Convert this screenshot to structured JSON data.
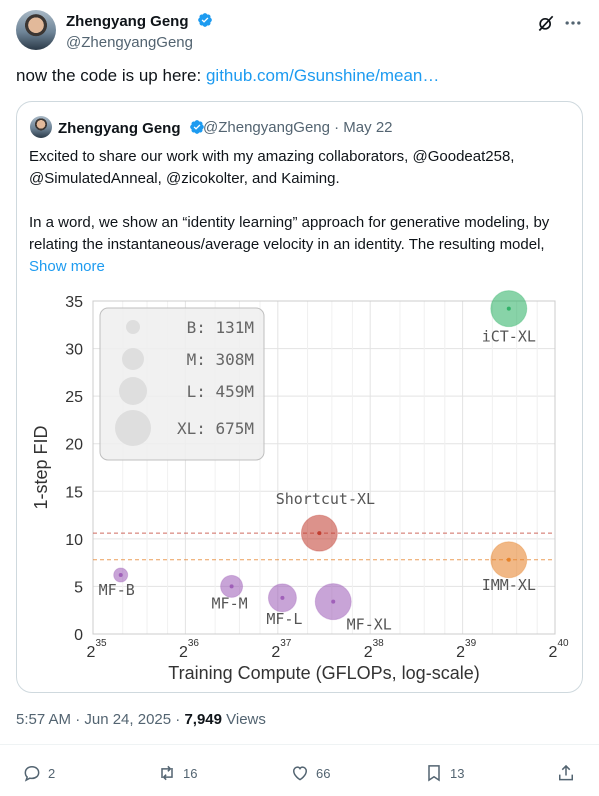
{
  "tweet": {
    "author_name": "Zhengyang Geng",
    "handle": "@ZhengyangGeng",
    "text_prefix": "now the code is up here: ",
    "link_text": "github.com/Gsunshine/mean…"
  },
  "quote": {
    "author_name": "Zhengyang Geng",
    "meta": "@ZhengyangGeng · May 22",
    "lines1": [
      "Excited to share our work with my amazing collaborators, @Goodeat258,",
      "@SimulatedAnneal, @zicokolter, and Kaiming."
    ],
    "lines2": [
      "In a word, we show an “identity learning” approach for generative modeling, by",
      "relating the instantaneous/average velocity in an identity. The resulting model,"
    ],
    "show_more": "Show more"
  },
  "chart_data": {
    "type": "scatter",
    "xlabel": "Training Compute (GFLOPs, log-scale)",
    "ylabel": "1-step FID",
    "x_scale": "log2",
    "xlim_exp": [
      35,
      40
    ],
    "x_ticks": [
      {
        "base": "2",
        "exp": "35"
      },
      {
        "base": "2",
        "exp": "36"
      },
      {
        "base": "2",
        "exp": "37"
      },
      {
        "base": "2",
        "exp": "38"
      },
      {
        "base": "2",
        "exp": "39"
      },
      {
        "base": "2",
        "exp": "40"
      }
    ],
    "ylim": [
      0,
      35
    ],
    "y_ticks": [
      "0",
      "5",
      "10",
      "15",
      "20",
      "25",
      "30",
      "35"
    ],
    "grid": true,
    "legend": {
      "position": "top-left",
      "entries": [
        {
          "label": "B: 131M",
          "size": "B"
        },
        {
          "label": "M: 308M",
          "size": "M"
        },
        {
          "label": "L: 459M",
          "size": "L"
        },
        {
          "label": "XL: 675M",
          "size": "XL"
        }
      ]
    },
    "points": [
      {
        "label": "MF-B",
        "x_exp": 35.3,
        "y": 6.2,
        "size": "B",
        "color": "#9b59b6"
      },
      {
        "label": "MF-M",
        "x_exp": 36.5,
        "y": 5.0,
        "size": "M",
        "color": "#9b59b6"
      },
      {
        "label": "MF-L",
        "x_exp": 37.05,
        "y": 3.8,
        "size": "L",
        "color": "#9b59b6"
      },
      {
        "label": "MF-XL",
        "x_exp": 37.6,
        "y": 3.4,
        "size": "XL",
        "color": "#9b59b6"
      },
      {
        "label": "Shortcut-XL",
        "x_exp": 37.45,
        "y": 10.6,
        "size": "XL",
        "color": "#c0392b"
      },
      {
        "label": "iCT-XL",
        "x_exp": 39.5,
        "y": 34.2,
        "size": "XL",
        "color": "#27ae60"
      },
      {
        "label": "IMM-XL",
        "x_exp": 39.5,
        "y": 7.8,
        "size": "XL",
        "color": "#e67e22"
      }
    ],
    "reference_lines": [
      {
        "y": 10.6,
        "color": "#c0392b"
      },
      {
        "y": 7.8,
        "color": "#e67e22"
      }
    ]
  },
  "footer": {
    "time": "5:57 AM · Jun 24, 2025 · ",
    "views_count": "7,949",
    "views_label": " Views",
    "replies": "2",
    "reposts": "16",
    "likes": "66",
    "bookmarks": "13"
  },
  "colors": {
    "link": "#1d9bf0",
    "verified": "#1d9bf0",
    "muted": "#536471"
  }
}
